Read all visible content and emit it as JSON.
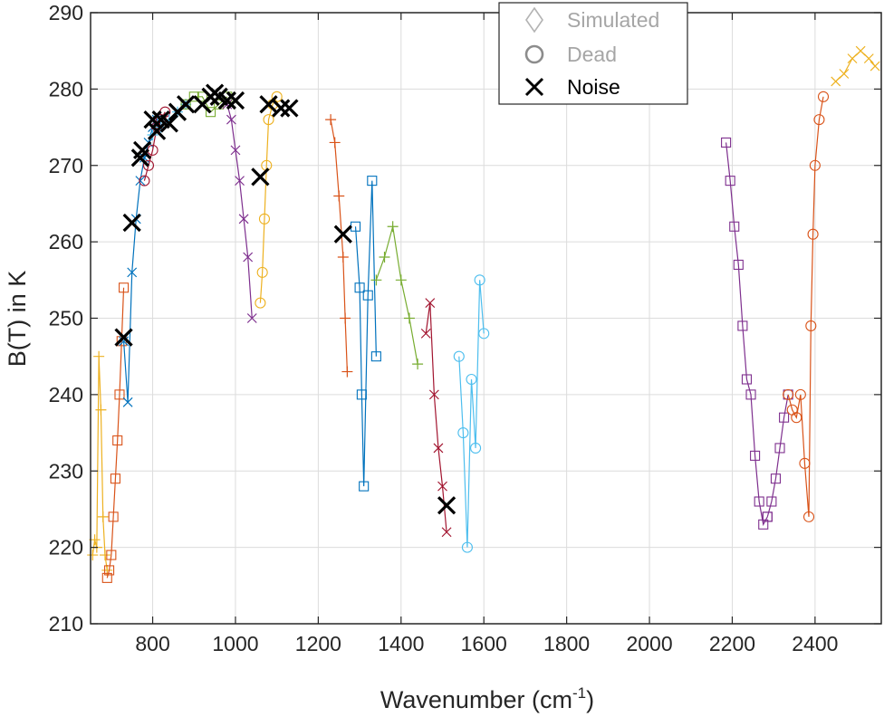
{
  "chart_data": {
    "type": "line",
    "title": "",
    "xlabel": "Wavenumber (cm",
    "xlabel_sup": "-1",
    "xlabel_close": ")",
    "ylabel": "B(T) in K",
    "xlim": [
      650,
      2560
    ],
    "ylim": [
      210,
      290
    ],
    "xticks": [
      800,
      1000,
      1200,
      1400,
      1600,
      1800,
      2000,
      2200,
      2400
    ],
    "yticks": [
      210,
      220,
      230,
      240,
      250,
      260,
      270,
      280,
      290
    ],
    "grid": true,
    "legend": {
      "position": "top-center",
      "entries": [
        {
          "label": "Simulated",
          "marker": "diamond",
          "color": "#b3b3b3"
        },
        {
          "label": "Dead",
          "marker": "circle",
          "color": "#8c8c8c"
        },
        {
          "label": "Noise",
          "marker": "x",
          "color": "#000000"
        }
      ]
    },
    "series": [
      {
        "color": "#EDB120",
        "marker": "plus",
        "x": [
          655,
          660,
          665,
          670,
          675,
          680,
          685,
          690
        ],
        "y": [
          219,
          221,
          220,
          245,
          238,
          224,
          219,
          217
        ]
      },
      {
        "color": "#D95319",
        "marker": "square",
        "x": [
          690,
          695,
          700,
          705,
          710,
          715,
          720,
          725,
          730
        ],
        "y": [
          216,
          217,
          219,
          224,
          229,
          234,
          240,
          247,
          254
        ]
      },
      {
        "color": "#0072BD",
        "marker": "x",
        "x": [
          730,
          740,
          750,
          760,
          770,
          780,
          790,
          800,
          810
        ],
        "y": [
          247,
          239,
          256,
          263,
          268,
          271,
          273,
          275,
          276
        ]
      },
      {
        "color": "#A2142F",
        "marker": "circle",
        "x": [
          780,
          790,
          800,
          810,
          820,
          830
        ],
        "y": [
          268,
          270,
          272,
          275,
          276,
          277
        ]
      },
      {
        "color": "#4DBEEE",
        "marker": "plus",
        "x": [
          800,
          820,
          840,
          860,
          880
        ],
        "y": [
          274,
          275,
          276,
          277,
          278
        ]
      },
      {
        "color": "#77AC30",
        "marker": "square",
        "x": [
          880,
          900,
          920,
          940,
          960,
          980
        ],
        "y": [
          278,
          279,
          279,
          277,
          278,
          279
        ]
      },
      {
        "color": "#7E2F8E",
        "marker": "x",
        "x": [
          980,
          990,
          1000,
          1010,
          1020,
          1030,
          1040
        ],
        "y": [
          278,
          276,
          272,
          268,
          263,
          258,
          250
        ]
      },
      {
        "color": "#EDB120",
        "marker": "circle",
        "x": [
          1060,
          1065,
          1070,
          1075,
          1080,
          1090,
          1100
        ],
        "y": [
          252,
          256,
          263,
          270,
          276,
          278,
          279
        ]
      },
      {
        "color": "#D95319",
        "marker": "plus",
        "x": [
          1230,
          1240,
          1250,
          1260,
          1265,
          1270
        ],
        "y": [
          276,
          273,
          266,
          258,
          250,
          243
        ]
      },
      {
        "color": "#0072BD",
        "marker": "square",
        "x": [
          1290,
          1300,
          1305,
          1310,
          1320,
          1330,
          1340
        ],
        "y": [
          262,
          254,
          240,
          228,
          253,
          268,
          245
        ]
      },
      {
        "color": "#77AC30",
        "marker": "plus",
        "x": [
          1340,
          1360,
          1380,
          1400,
          1420,
          1440
        ],
        "y": [
          255,
          258,
          262,
          255,
          250,
          244
        ]
      },
      {
        "color": "#A2142F",
        "marker": "x",
        "x": [
          1460,
          1470,
          1480,
          1490,
          1500,
          1510
        ],
        "y": [
          248,
          252,
          240,
          233,
          228,
          222
        ]
      },
      {
        "color": "#4DBEEE",
        "marker": "circle",
        "x": [
          1540,
          1550,
          1560,
          1570,
          1580,
          1590,
          1600
        ],
        "y": [
          245,
          235,
          220,
          242,
          233,
          255,
          248
        ]
      },
      {
        "color": "#7E2F8E",
        "marker": "square",
        "x": [
          2185,
          2195,
          2205,
          2215,
          2225,
          2235,
          2245,
          2255,
          2265,
          2275,
          2285
        ],
        "y": [
          273,
          268,
          262,
          257,
          249,
          242,
          240,
          232,
          226,
          223,
          224
        ]
      },
      {
        "color": "#7E2F8E",
        "marker": "square",
        "x": [
          2285,
          2295,
          2305,
          2315,
          2325,
          2335
        ],
        "y": [
          224,
          226,
          229,
          233,
          237,
          240
        ]
      },
      {
        "color": "#D95319",
        "marker": "circle",
        "x": [
          2335,
          2345,
          2355,
          2365,
          2375,
          2385,
          2390,
          2395,
          2400,
          2410,
          2420
        ],
        "y": [
          240,
          238,
          237,
          240,
          231,
          224,
          249,
          261,
          270,
          276,
          279
        ]
      },
      {
        "color": "#EDB120",
        "marker": "x",
        "x": [
          2450,
          2470,
          2490,
          2510,
          2530,
          2545
        ],
        "y": [
          281,
          282,
          284,
          285,
          284,
          283
        ]
      }
    ],
    "noise_points": {
      "x": [
        730,
        750,
        770,
        775,
        800,
        810,
        820,
        840,
        860,
        880,
        920,
        940,
        950,
        960,
        980,
        1000,
        1060,
        1080,
        1110,
        1130,
        1260,
        1510
      ],
      "y": [
        247.5,
        262.5,
        271,
        272,
        276,
        274.5,
        276,
        275.5,
        277,
        278,
        278,
        279,
        279.5,
        279,
        278.5,
        278.5,
        268.5,
        278,
        277.5,
        277.5,
        261,
        225.5
      ]
    }
  }
}
